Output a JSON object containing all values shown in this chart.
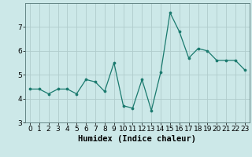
{
  "x": [
    0,
    1,
    2,
    3,
    4,
    5,
    6,
    7,
    8,
    9,
    10,
    11,
    12,
    13,
    14,
    15,
    16,
    17,
    18,
    19,
    20,
    21,
    22,
    23
  ],
  "y": [
    4.4,
    4.4,
    4.2,
    4.4,
    4.4,
    4.2,
    4.8,
    4.7,
    4.3,
    5.5,
    3.7,
    3.6,
    4.8,
    3.5,
    5.1,
    7.6,
    6.8,
    5.7,
    6.1,
    6.0,
    5.6,
    5.6,
    5.6,
    5.2
  ],
  "line_color": "#1a7a6e",
  "marker_color": "#1a7a6e",
  "bg_color": "#cce8e8",
  "grid_color_major": "#b0cccc",
  "grid_color_minor": "#c4dddd",
  "xlabel": "Humidex (Indice chaleur)",
  "xlim": [
    -0.5,
    23.5
  ],
  "ylim": [
    3.0,
    8.0
  ],
  "yticks": [
    3,
    4,
    5,
    6,
    7
  ],
  "xticks": [
    0,
    1,
    2,
    3,
    4,
    5,
    6,
    7,
    8,
    9,
    10,
    11,
    12,
    13,
    14,
    15,
    16,
    17,
    18,
    19,
    20,
    21,
    22,
    23
  ],
  "tick_fontsize": 6.5,
  "label_fontsize": 7.5
}
